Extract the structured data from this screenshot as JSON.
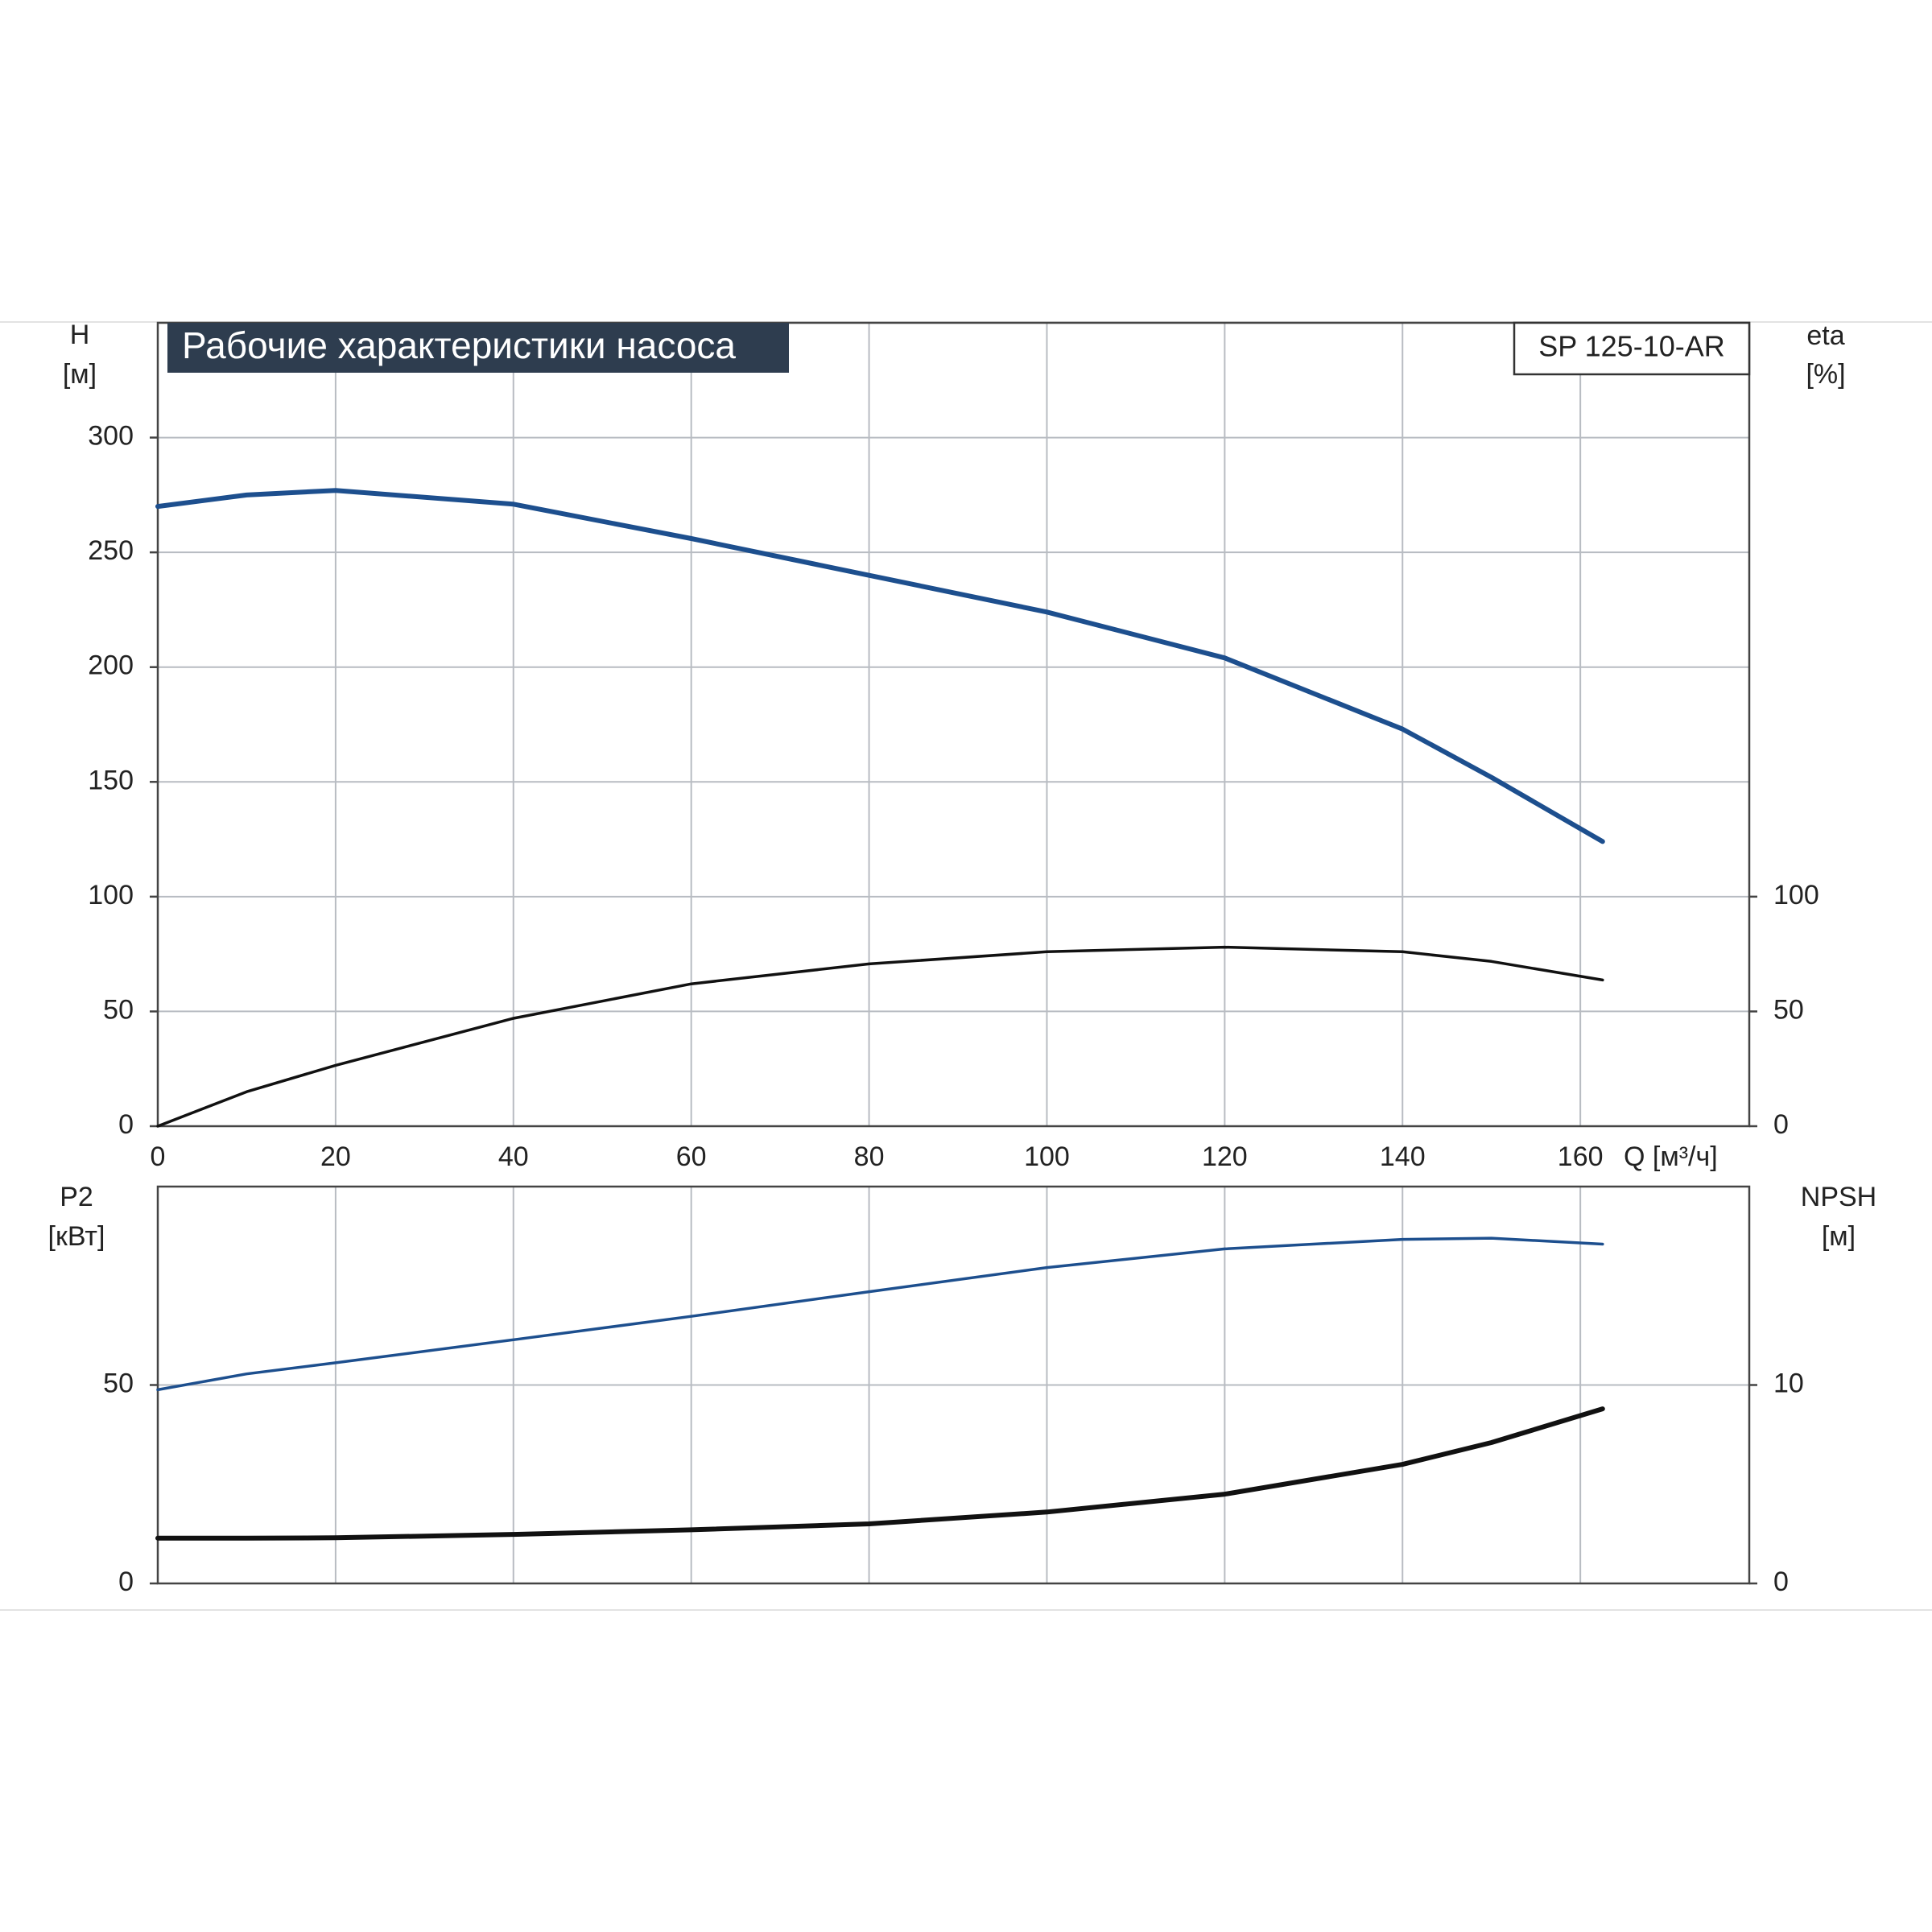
{
  "chart_data": [
    {
      "type": "line",
      "title": "Рабочие характеристики насоса",
      "model": "SP 125-10-AR",
      "ylabel": [
        "H",
        "[м]"
      ],
      "y2label": [
        "eta",
        "[%]"
      ],
      "xlabel": "Q [м³/ч]",
      "xlim": [
        0,
        179
      ],
      "xticks": [
        0,
        20,
        40,
        60,
        80,
        100,
        120,
        140,
        160
      ],
      "show_xtick_labels": true,
      "ylim": [
        0,
        350
      ],
      "yticks": [
        0,
        50,
        100,
        150,
        200,
        250,
        300
      ],
      "y2lim": [
        0,
        350
      ],
      "y2ticks": [
        0,
        50,
        100
      ],
      "grid": true,
      "x": [
        0,
        10,
        20,
        40,
        60,
        80,
        100,
        120,
        140,
        150,
        162.5
      ],
      "series": [
        {
          "color": "#1d4f8e",
          "width": 6,
          "values": [
            270,
            275,
            277,
            271,
            256,
            240,
            224,
            204,
            173,
            152,
            124
          ]
        },
        {
          "color": "#111111",
          "width": 3.5,
          "axis": "y2",
          "values": [
            0,
            15,
            26.5,
            47,
            62,
            70.7,
            76,
            78,
            76,
            71.8,
            63.7
          ]
        }
      ]
    },
    {
      "type": "line",
      "ylabel": [
        "P2",
        "[кВт]"
      ],
      "y2label": [
        "NPSH",
        "[м]"
      ],
      "xlim": [
        0,
        179
      ],
      "xticks": [
        0,
        20,
        40,
        60,
        80,
        100,
        120,
        140,
        160
      ],
      "show_xtick_labels": false,
      "ylim": [
        0,
        100
      ],
      "yticks": [
        0,
        50
      ],
      "y2lim": [
        0,
        20
      ],
      "y2ticks": [
        0,
        10
      ],
      "grid": true,
      "x": [
        0,
        10,
        20,
        40,
        60,
        80,
        100,
        120,
        140,
        150,
        162.5
      ],
      "series": [
        {
          "color": "#1d4f8e",
          "width": 3.5,
          "values": [
            48.8,
            52.8,
            55.6,
            61.4,
            67.3,
            73.5,
            79.6,
            84.3,
            86.7,
            87,
            85.5
          ]
        },
        {
          "color": "#111111",
          "width": 6,
          "axis": "y2",
          "values": [
            2.28,
            2.28,
            2.3,
            2.47,
            2.7,
            3.0,
            3.6,
            4.5,
            6.0,
            7.1,
            8.8
          ]
        }
      ]
    }
  ]
}
